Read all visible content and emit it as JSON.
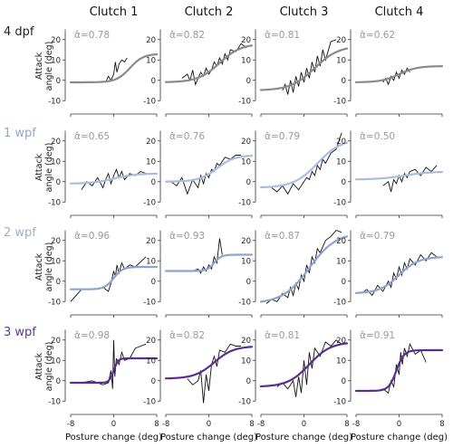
{
  "figure": {
    "columns": [
      "Clutch 1",
      "Clutch 2",
      "Clutch 3",
      "Clutch 4"
    ],
    "rows": [
      {
        "label": "4 dpf",
        "color": "#222222",
        "fit_color": "#8a8a8a"
      },
      {
        "label": "1 wpf",
        "color": "#8fa6c8",
        "fit_color": "#a9bde0"
      },
      {
        "label": "2 wpf",
        "color": "#9aaed1",
        "fit_color": "#8da4cc"
      },
      {
        "label": "3 wpf",
        "color": "#5b3a8c",
        "fit_color": "#5b2d8e"
      }
    ],
    "ylabel": "Attack angle (deg)",
    "xlabel": "Posture change (deg)",
    "alpha_symbol": "α̂",
    "x_ticks": [
      "-8",
      "0",
      "8"
    ],
    "y_ticks": [
      "20",
      "10",
      "0",
      "-10"
    ],
    "data_line_color": "#111111",
    "alpha_color": "#9a9a9a"
  },
  "chart_data": [
    {
      "row": 0,
      "col": 0,
      "type": "line",
      "alpha": "=0.78",
      "fit": {
        "low": -1,
        "high": 13,
        "mid": 3,
        "k": 0.8
      },
      "x": [
        -1.5,
        -1,
        -0.5,
        0,
        0.3,
        0.6,
        1,
        1.5,
        2,
        2.5
      ],
      "y": [
        -1,
        2,
        0,
        3,
        9,
        4,
        8,
        10,
        9,
        11
      ],
      "xlim": [
        -8,
        8
      ],
      "ylim": [
        -13,
        27
      ]
    },
    {
      "row": 0,
      "col": 1,
      "type": "line",
      "alpha": "=0.82",
      "fit": {
        "low": -1,
        "high": 18,
        "mid": 2,
        "k": 0.5
      },
      "x": [
        -5,
        -4,
        -3.5,
        -3,
        -2.5,
        -2,
        -1.5,
        -1,
        -0.5,
        0,
        0.5,
        1,
        1.5,
        2,
        2.5,
        3,
        3.5,
        4,
        5,
        6,
        7
      ],
      "y": [
        1,
        3,
        0,
        5,
        -2,
        1,
        4,
        2,
        6,
        3,
        5,
        9,
        7,
        11,
        8,
        13,
        10,
        15,
        14,
        18,
        16
      ],
      "xlim": [
        -8,
        8
      ],
      "ylim": [
        -13,
        27
      ]
    },
    {
      "row": 0,
      "col": 2,
      "type": "line",
      "alpha": "=0.81",
      "fit": {
        "low": -5,
        "high": 17,
        "mid": 2,
        "k": 0.45
      },
      "x": [
        -4,
        -3.5,
        -3,
        -2.5,
        -2,
        -1.5,
        -1,
        -0.5,
        0,
        0.5,
        1,
        1.5,
        2,
        2.5,
        3,
        3.5,
        4,
        5,
        6
      ],
      "y": [
        -5,
        -2,
        -7,
        0,
        -6,
        2,
        -3,
        4,
        -1,
        6,
        1,
        9,
        4,
        12,
        7,
        15,
        10,
        19,
        20
      ],
      "xlim": [
        -8,
        8
      ],
      "ylim": [
        -13,
        27
      ]
    },
    {
      "row": 0,
      "col": 3,
      "type": "line",
      "alpha": "=0.62",
      "fit": {
        "low": -1,
        "high": 7,
        "mid": 0,
        "k": 0.6
      },
      "x": [
        -3,
        -2.5,
        -2,
        -1.5,
        -1,
        -0.5,
        0,
        0.5,
        1,
        1.5,
        2
      ],
      "y": [
        -1,
        1,
        -2,
        2,
        0,
        4,
        1,
        5,
        3,
        6,
        4
      ],
      "xlim": [
        -8,
        8
      ],
      "ylim": [
        -13,
        27
      ]
    },
    {
      "row": 1,
      "col": 0,
      "type": "line",
      "alpha": "=0.65",
      "fit": {
        "low": -1,
        "high": 4,
        "mid": 0,
        "k": 0.5
      },
      "x": [
        -6,
        -5,
        -4,
        -3,
        -2,
        -1.5,
        -1,
        -0.5,
        0,
        0.5,
        1,
        1.5,
        2,
        3,
        4,
        5,
        6
      ],
      "y": [
        -4,
        0,
        -2,
        2,
        -3,
        1,
        4,
        -1,
        3,
        6,
        2,
        5,
        1,
        4,
        3,
        5,
        4
      ],
      "xlim": [
        -8,
        8
      ],
      "ylim": [
        -13,
        27
      ]
    },
    {
      "row": 1,
      "col": 1,
      "type": "line",
      "alpha": "=0.76",
      "fit": {
        "low": 0,
        "high": 13,
        "mid": 1.5,
        "k": 0.6
      },
      "x": [
        -7,
        -6,
        -5,
        -4,
        -3,
        -2,
        -1.5,
        -1,
        -0.5,
        0,
        0.5,
        1,
        1.5,
        2,
        3,
        4,
        5,
        6
      ],
      "y": [
        0,
        -2,
        2,
        -6,
        1,
        -3,
        3,
        -1,
        4,
        2,
        6,
        5,
        9,
        8,
        12,
        11,
        13,
        13
      ],
      "xlim": [
        -8,
        8
      ],
      "ylim": [
        -13,
        27
      ]
    },
    {
      "row": 1,
      "col": 2,
      "type": "line",
      "alpha": "=0.79",
      "fit": {
        "low": -3,
        "high": 21,
        "mid": 2.5,
        "k": 0.45
      },
      "x": [
        -6,
        -5,
        -4,
        -3,
        -2,
        -1,
        0,
        0.5,
        1,
        1.5,
        2,
        2.5,
        3,
        3.5,
        4,
        5,
        6,
        7
      ],
      "y": [
        -3,
        -5,
        -2,
        -6,
        -1,
        -4,
        0,
        2,
        1,
        5,
        3,
        8,
        6,
        11,
        9,
        14,
        16,
        24
      ],
      "xlim": [
        -8,
        8
      ],
      "ylim": [
        -13,
        27
      ]
    },
    {
      "row": 1,
      "col": 3,
      "type": "line",
      "alpha": "=0.50",
      "fit": {
        "low": 1,
        "high": 5,
        "mid": 1,
        "k": 0.4
      },
      "x": [
        -3,
        -2,
        -1.5,
        -1,
        -0.5,
        0,
        0.5,
        1,
        1.5,
        2,
        3,
        4,
        5,
        6,
        7
      ],
      "y": [
        -2,
        0,
        -5,
        1,
        -1,
        3,
        0,
        4,
        2,
        5,
        6,
        3,
        7,
        5,
        8
      ],
      "xlim": [
        -8,
        8
      ],
      "ylim": [
        -13,
        27
      ]
    },
    {
      "row": 2,
      "col": 0,
      "type": "line",
      "alpha": "=0.96",
      "fit": {
        "low": -4,
        "high": 7,
        "mid": 0,
        "k": 1.2
      },
      "x": [
        -8,
        -6,
        -4,
        -2,
        -1,
        -0.5,
        0,
        0.3,
        0.6,
        1,
        1.5,
        2,
        3,
        4,
        6
      ],
      "y": [
        -10,
        -4,
        -4,
        -3,
        -5,
        -1,
        5,
        2,
        8,
        4,
        9,
        6,
        8,
        7,
        12
      ],
      "xlim": [
        -8,
        8
      ],
      "ylim": [
        -13,
        27
      ]
    },
    {
      "row": 2,
      "col": 1,
      "type": "line",
      "alpha": "=0.93",
      "fit": {
        "low": 5,
        "high": 13,
        "mid": 1,
        "k": 1.5
      },
      "x": [
        -3,
        -2,
        -1.5,
        -1,
        -0.5,
        0,
        0.5,
        1,
        1.5,
        2,
        2.5
      ],
      "y": [
        5,
        6,
        4,
        7,
        5,
        8,
        6,
        12,
        9,
        21,
        13
      ],
      "xlim": [
        -8,
        8
      ],
      "ylim": [
        -13,
        27
      ]
    },
    {
      "row": 2,
      "col": 2,
      "type": "line",
      "alpha": "=0.87",
      "fit": {
        "low": -11,
        "high": 24,
        "mid": 1,
        "k": 0.4
      },
      "x": [
        -7,
        -6,
        -5,
        -4,
        -3,
        -2.5,
        -2,
        -1.5,
        -1,
        -0.5,
        0,
        0.5,
        1,
        1.5,
        2,
        2.5,
        3,
        4,
        5,
        6,
        7
      ],
      "y": [
        -11,
        -9,
        -10,
        -6,
        -8,
        -3,
        -7,
        -1,
        -4,
        3,
        0,
        8,
        4,
        12,
        9,
        16,
        14,
        20,
        22,
        25,
        24
      ],
      "xlim": [
        -8,
        8
      ],
      "ylim": [
        -13,
        27
      ]
    },
    {
      "row": 2,
      "col": 3,
      "type": "line",
      "alpha": "=0.79",
      "fit": {
        "low": -6,
        "high": 12,
        "mid": 0,
        "k": 0.55
      },
      "x": [
        -7,
        -6,
        -5,
        -4,
        -3,
        -2,
        -1.5,
        -1,
        -0.5,
        0,
        0.5,
        1,
        1.5,
        2,
        3,
        4,
        5,
        6,
        7
      ],
      "y": [
        -6,
        -4,
        -7,
        -2,
        -5,
        0,
        -3,
        4,
        1,
        7,
        3,
        9,
        6,
        11,
        8,
        13,
        10,
        14,
        12
      ],
      "xlim": [
        -8,
        8
      ],
      "ylim": [
        -13,
        27
      ]
    },
    {
      "row": 3,
      "col": 0,
      "type": "line",
      "alpha": "=0.98",
      "fit": {
        "low": -1,
        "high": 11,
        "mid": 0,
        "k": 2.5
      },
      "x": [
        -6,
        -4,
        -2,
        -1,
        -0.5,
        -0.2,
        0,
        0.2,
        0.5,
        1,
        1.5,
        2,
        3,
        4,
        6
      ],
      "y": [
        -1,
        0,
        -2,
        -1,
        5,
        -4,
        20,
        2,
        11,
        8,
        14,
        10,
        11,
        16,
        18
      ],
      "xlim": [
        -8,
        8
      ],
      "ylim": [
        -13,
        27
      ]
    },
    {
      "row": 3,
      "col": 1,
      "type": "line",
      "alpha": "=0.82",
      "fit": {
        "low": 1,
        "high": 17,
        "mid": 1,
        "k": 0.55
      },
      "x": [
        -4,
        -3,
        -2,
        -1.5,
        -1,
        -0.5,
        0,
        0.5,
        1,
        1.5,
        2,
        3,
        4,
        5,
        6
      ],
      "y": [
        1,
        -2,
        0,
        5,
        -11,
        3,
        -5,
        8,
        12,
        7,
        15,
        14,
        18,
        17,
        17
      ],
      "xlim": [
        -8,
        8
      ],
      "ylim": [
        -13,
        27
      ]
    },
    {
      "row": 3,
      "col": 2,
      "type": "line",
      "alpha": "=0.81",
      "fit": {
        "low": -3,
        "high": 19,
        "mid": 1,
        "k": 0.5
      },
      "x": [
        -5,
        -4,
        -3,
        -2,
        -1.5,
        -1,
        -0.5,
        0,
        0.5,
        1,
        1.5,
        2,
        3,
        4,
        5,
        6,
        7
      ],
      "y": [
        -3,
        -1,
        -4,
        0,
        -8,
        2,
        -6,
        10,
        -2,
        14,
        6,
        16,
        12,
        19,
        17,
        20,
        18
      ],
      "xlim": [
        -8,
        8
      ],
      "ylim": [
        -13,
        27
      ]
    },
    {
      "row": 3,
      "col": 3,
      "type": "line",
      "alpha": "=0.91",
      "fit": {
        "low": -5,
        "high": 15,
        "mid": -0.5,
        "k": 1.4
      },
      "x": [
        -4,
        -3,
        -2,
        -1.5,
        -1,
        -0.5,
        0,
        0.3,
        0.6,
        1,
        1.5,
        2,
        3,
        4,
        5
      ],
      "y": [
        -5,
        -4,
        -6,
        0,
        -3,
        8,
        3,
        14,
        8,
        16,
        12,
        18,
        13,
        15,
        9
      ],
      "xlim": [
        -8,
        8
      ],
      "ylim": [
        -13,
        27
      ]
    }
  ]
}
